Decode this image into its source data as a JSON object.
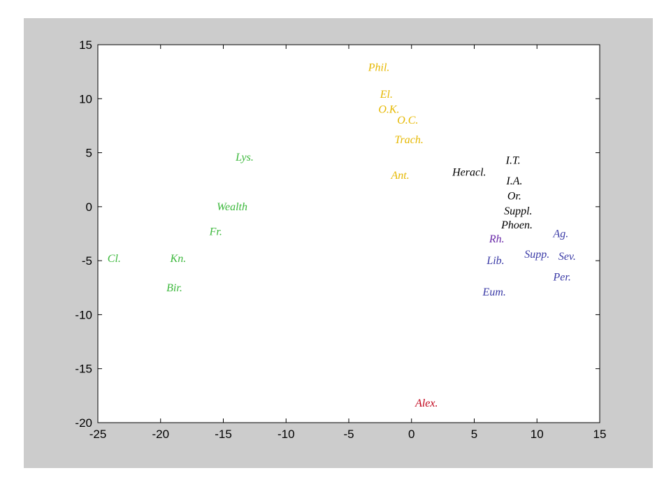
{
  "chart_data": {
    "type": "scatter",
    "title": "",
    "xlabel": "",
    "ylabel": "",
    "xlim": [
      -25,
      15
    ],
    "ylim": [
      -20,
      15
    ],
    "xticks": [
      -25,
      -20,
      -15,
      -10,
      -5,
      0,
      5,
      10,
      15
    ],
    "yticks": [
      -20,
      -15,
      -10,
      -5,
      0,
      5,
      10,
      15
    ],
    "grid": false,
    "legend": "none",
    "colors": {
      "green": "#3cb83c",
      "gold": "#e6b800",
      "black": "#000000",
      "purple": "#6a2aa8",
      "blue": "#3a3aa6",
      "red": "#c00018"
    },
    "points": [
      {
        "label": "Phil.",
        "x": -2.6,
        "y": 12.9,
        "color": "gold"
      },
      {
        "label": "El.",
        "x": -2.0,
        "y": 10.4,
        "color": "gold"
      },
      {
        "label": "O.K.",
        "x": -1.8,
        "y": 9.0,
        "color": "gold"
      },
      {
        "label": "O.C.",
        "x": -0.3,
        "y": 8.0,
        "color": "gold"
      },
      {
        "label": "Trach.",
        "x": -0.2,
        "y": 6.2,
        "color": "gold"
      },
      {
        "label": "Ant.",
        "x": -0.9,
        "y": 2.9,
        "color": "gold"
      },
      {
        "label": "Lys.",
        "x": -13.3,
        "y": 4.6,
        "color": "green"
      },
      {
        "label": "Wealth",
        "x": -14.3,
        "y": 0.0,
        "color": "green"
      },
      {
        "label": "Fr.",
        "x": -15.6,
        "y": -2.3,
        "color": "green"
      },
      {
        "label": "Cl.",
        "x": -23.7,
        "y": -4.8,
        "color": "green"
      },
      {
        "label": "Kn.",
        "x": -18.6,
        "y": -4.8,
        "color": "green"
      },
      {
        "label": "Bir.",
        "x": -18.9,
        "y": -7.5,
        "color": "green"
      },
      {
        "label": "I.T.",
        "x": 8.1,
        "y": 4.3,
        "color": "black"
      },
      {
        "label": "Heracl.",
        "x": 4.6,
        "y": 3.2,
        "color": "black"
      },
      {
        "label": "I.A.",
        "x": 8.2,
        "y": 2.4,
        "color": "black"
      },
      {
        "label": "Or.",
        "x": 8.2,
        "y": 1.0,
        "color": "black"
      },
      {
        "label": "Suppl.",
        "x": 8.5,
        "y": -0.4,
        "color": "black"
      },
      {
        "label": "Phoen.",
        "x": 8.4,
        "y": -1.7,
        "color": "black"
      },
      {
        "label": "Rh.",
        "x": 6.8,
        "y": -3.0,
        "color": "purple"
      },
      {
        "label": "Ag.",
        "x": 11.9,
        "y": -2.5,
        "color": "blue"
      },
      {
        "label": "Supp.",
        "x": 10.0,
        "y": -4.4,
        "color": "blue"
      },
      {
        "label": "Sev.",
        "x": 12.4,
        "y": -4.6,
        "color": "blue"
      },
      {
        "label": "Lib.",
        "x": 6.7,
        "y": -5.0,
        "color": "blue"
      },
      {
        "label": "Per.",
        "x": 12.0,
        "y": -6.5,
        "color": "blue"
      },
      {
        "label": "Eum.",
        "x": 6.6,
        "y": -7.9,
        "color": "blue"
      },
      {
        "label": "Alex.",
        "x": 1.2,
        "y": -18.2,
        "color": "red"
      }
    ]
  }
}
